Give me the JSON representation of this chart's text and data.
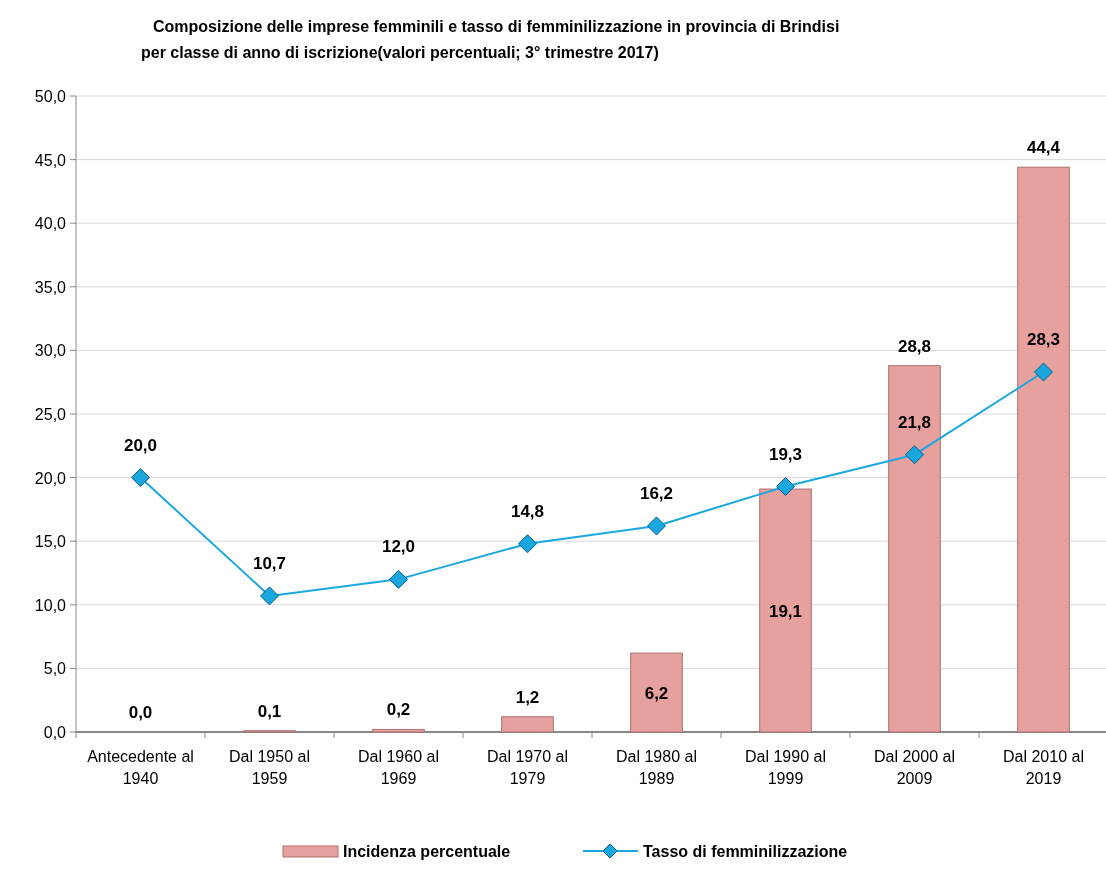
{
  "chart_data": {
    "type": "bar",
    "title": "Composizione delle imprese femminili e tasso di femminilizzazione in provincia di Brindisi\nper classe di anno di iscrizione(valori percentuali; 3° trimestre 2017)",
    "categories": [
      "Antecedente al 1940",
      "Dal 1950 al 1959",
      "Dal 1960 al 1969",
      "Dal 1970 al 1979",
      "Dal 1980 al 1989",
      "Dal 1990 al 1999",
      "Dal 2000 al 2009",
      "Dal 2010 al 2019"
    ],
    "series": [
      {
        "name": "Incidenza percentuale",
        "color": "#e6a09e",
        "values": [
          0.0,
          0.1,
          0.2,
          1.2,
          6.2,
          19.1,
          28.8,
          44.4
        ],
        "value_labels": [
          "0,0",
          "0,1",
          "0,2",
          "1,2",
          "6,2",
          "19,1",
          "28,8",
          "44,4"
        ]
      },
      {
        "name": "Tasso di femminilizzazione",
        "type": "line",
        "color": "#1aa7e0",
        "marker": "diamond",
        "values": [
          20.0,
          10.7,
          12.0,
          14.8,
          16.2,
          19.3,
          21.8,
          28.3
        ],
        "value_labels": [
          "20,0",
          "10,7",
          "12,0",
          "14,8",
          "16,2",
          "19,3",
          "21,8",
          "28,3"
        ]
      }
    ],
    "ylim": [
      0,
      50
    ],
    "yticks": [
      {
        "value": 0,
        "label": "0,0"
      },
      {
        "value": 5,
        "label": "5,0"
      },
      {
        "value": 10,
        "label": "10,0"
      },
      {
        "value": 15,
        "label": "15,0"
      },
      {
        "value": 20,
        "label": "20,0"
      },
      {
        "value": 25,
        "label": "25,0"
      },
      {
        "value": 30,
        "label": "30,0"
      },
      {
        "value": 35,
        "label": "35,0"
      },
      {
        "value": 40,
        "label": "40,0"
      },
      {
        "value": 45,
        "label": "45,0"
      },
      {
        "value": 50,
        "label": "50,0"
      }
    ],
    "grid": "y",
    "legend": "bottom"
  }
}
